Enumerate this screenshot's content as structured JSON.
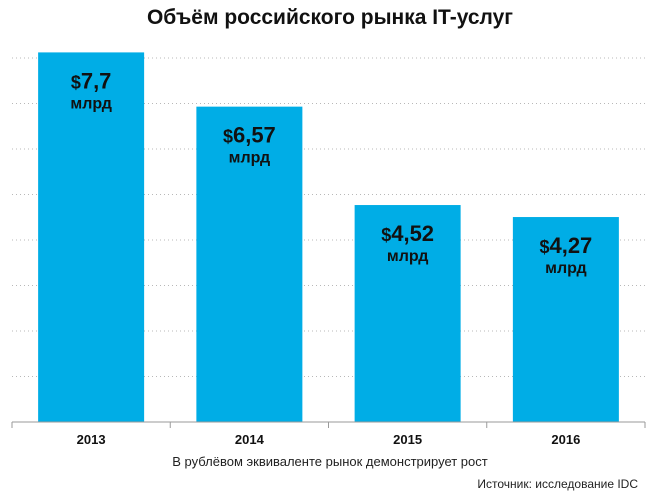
{
  "chart_data": {
    "type": "bar",
    "title": "Объём российского рынка IT-услуг",
    "categories": [
      "2013",
      "2014",
      "2015",
      "2016"
    ],
    "values": [
      7.7,
      6.57,
      4.52,
      4.27
    ],
    "value_labels": [
      {
        "amount": "7,7",
        "unit": "млрд"
      },
      {
        "amount": "6,57",
        "unit": "млрд"
      },
      {
        "amount": "4,52",
        "unit": "млрд"
      },
      {
        "amount": "4,27",
        "unit": "млрд"
      }
    ],
    "currency_symbol": "$",
    "ylim": [
      0,
      8
    ],
    "grid": true,
    "xlabel": "",
    "ylabel": ""
  },
  "caption": "В рублёвом эквиваленте рынок демонстрирует рост",
  "source": "Источник: исследование IDC",
  "colors": {
    "bar": "#00ade6",
    "grid": "#b8b8b8",
    "axis": "#9a9a9a",
    "text": "#111111"
  }
}
